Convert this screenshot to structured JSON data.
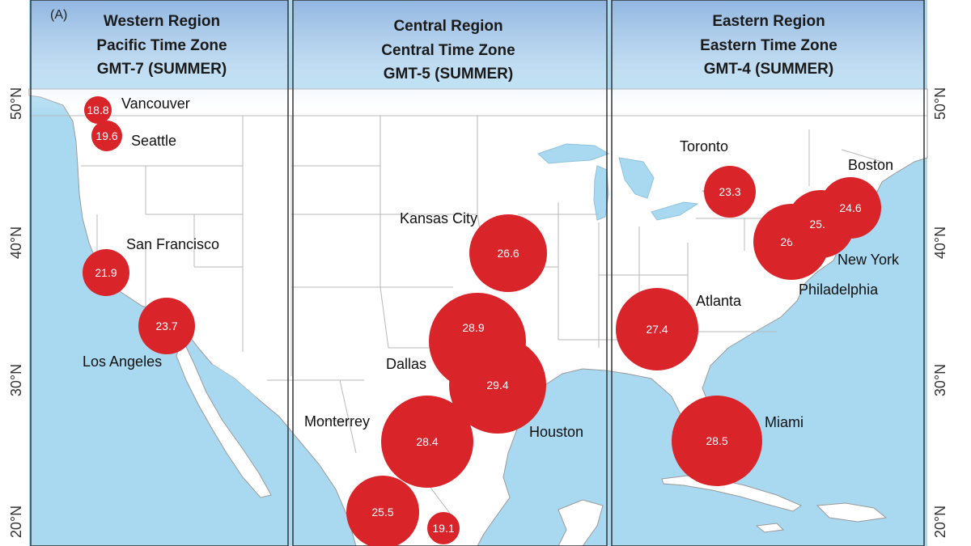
{
  "panel_label": "(A)",
  "regions": [
    {
      "title": [
        "Western Region",
        "Pacific Time Zone",
        "GMT-7 (SUMMER)"
      ]
    },
    {
      "title": [
        "Central Region",
        "Central Time Zone",
        "GMT-5 (SUMMER)"
      ]
    },
    {
      "title": [
        "Eastern Region",
        "Eastern Time Zone",
        "GMT-4 (SUMMER)"
      ]
    }
  ],
  "latitude_labels": [
    "50°N",
    "40°N",
    "30°N",
    "20°N"
  ],
  "cities": [
    {
      "name": "Vancouver",
      "value": 18.8
    },
    {
      "name": "Seattle",
      "value": 19.6
    },
    {
      "name": "San Francisco",
      "value": 21.9
    },
    {
      "name": "Los Angeles",
      "value": 23.7
    },
    {
      "name": "Kansas City",
      "value": 26.6
    },
    {
      "name": "Dallas",
      "value": 28.9
    },
    {
      "name": "Houston",
      "value": 29.4
    },
    {
      "name": "Monterrey",
      "value": 28.4
    },
    {
      "name": "",
      "value": 25.5
    },
    {
      "name": "",
      "value": 19.1
    },
    {
      "name": "Toronto",
      "value": 23.3
    },
    {
      "name": "Boston",
      "value": 24.6
    },
    {
      "name": "New York",
      "value": 25.6
    },
    {
      "name": "Philadelphia",
      "value": 26.5
    },
    {
      "name": "Atlanta",
      "value": 27.4
    },
    {
      "name": "Miami",
      "value": 28.5
    }
  ],
  "colors": {
    "ocean": "#a9d9f0",
    "land": "#ffffff",
    "marker": "#d9242a",
    "border_line": "#b9b9b9",
    "panel_frame": "#333333",
    "header_fade": "#8fb4e0"
  }
}
